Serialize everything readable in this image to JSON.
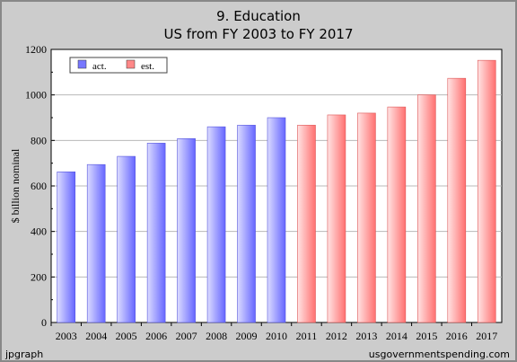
{
  "title_line1": "9. Education",
  "title_line2": "US from FY 2003 to FY 2017",
  "footer_left": "jpgraph",
  "footer_right": "usgovernmentspending.com",
  "chart_data": {
    "type": "bar",
    "title": "9. Education US from FY 2003 to FY 2017",
    "ylabel": "$ billion nominal",
    "xlabel": "",
    "ylim": [
      0,
      1200
    ],
    "yticks": [
      0,
      200,
      400,
      600,
      800,
      1000,
      1200
    ],
    "grid": true,
    "legend_position": "top-left",
    "categories": [
      "2003",
      "2004",
      "2005",
      "2006",
      "2007",
      "2008",
      "2009",
      "2010",
      "2011",
      "2012",
      "2013",
      "2014",
      "2015",
      "2016",
      "2017"
    ],
    "series": [
      {
        "name": "act.",
        "color": "#7777ff",
        "values": [
          662,
          694,
          730,
          788,
          808,
          860,
          867,
          900,
          null,
          null,
          null,
          null,
          null,
          null,
          null
        ]
      },
      {
        "name": "est.",
        "color": "#ff8888",
        "values": [
          null,
          null,
          null,
          null,
          null,
          null,
          null,
          null,
          867,
          912,
          920,
          947,
          1000,
          1073,
          1152
        ]
      }
    ]
  }
}
